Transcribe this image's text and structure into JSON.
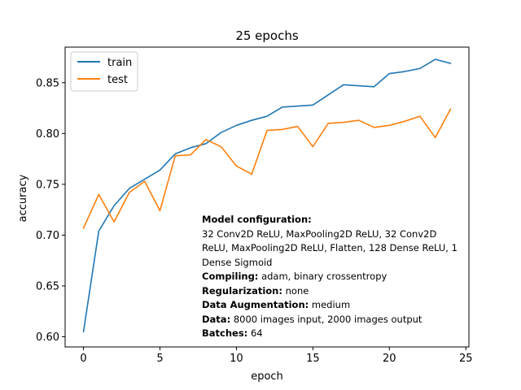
{
  "chart_data": {
    "type": "line",
    "title": "25 epochs",
    "xlabel": "epoch",
    "ylabel": "accuracy",
    "xlim": [
      -1.2,
      25.2
    ],
    "ylim": [
      0.59,
      0.885
    ],
    "xticks": [
      0,
      5,
      10,
      15,
      20,
      25
    ],
    "yticks": [
      0.6,
      0.65,
      0.7,
      0.75,
      0.8,
      0.85
    ],
    "ytick_labels": [
      "0.60",
      "0.65",
      "0.70",
      "0.75",
      "0.80",
      "0.85"
    ],
    "grid": false,
    "legend_position": "top-left",
    "x": [
      0,
      1,
      2,
      3,
      4,
      5,
      6,
      7,
      8,
      9,
      10,
      11,
      12,
      13,
      14,
      15,
      16,
      17,
      18,
      19,
      20,
      21,
      22,
      23,
      24
    ],
    "series": [
      {
        "name": "train",
        "color": "#1f77b4",
        "values": [
          0.605,
          0.704,
          0.729,
          0.746,
          0.755,
          0.764,
          0.78,
          0.786,
          0.79,
          0.801,
          0.808,
          0.813,
          0.817,
          0.826,
          0.827,
          0.828,
          0.838,
          0.848,
          0.847,
          0.846,
          0.859,
          0.861,
          0.864,
          0.873,
          0.869
        ]
      },
      {
        "name": "test",
        "color": "#ff7f0e",
        "values": [
          0.707,
          0.74,
          0.713,
          0.742,
          0.753,
          0.724,
          0.778,
          0.779,
          0.794,
          0.787,
          0.768,
          0.76,
          0.803,
          0.804,
          0.807,
          0.787,
          0.81,
          0.811,
          0.813,
          0.806,
          0.808,
          0.812,
          0.817,
          0.796,
          0.824
        ]
      }
    ],
    "annotation": {
      "model_label": "Model configuration:",
      "model_value_line1": "32 Conv2D ReLU, MaxPooling2D ReLU, 32 Conv2D",
      "model_value_line2": "ReLU, MaxPooling2D ReLU, Flatten, 128 Dense ReLU, 1",
      "model_value_line3": "Dense Sigmoid",
      "compiling_label": "Compiling:",
      "compiling_value": "adam, binary crossentropy",
      "regularization_label": "Regularization:",
      "regularization_value": "none",
      "augmentation_label": "Data Augmentation:",
      "augmentation_value": "medium",
      "data_label": "Data:",
      "data_value": "8000 images input, 2000 images output",
      "batches_label": "Batches:",
      "batches_value": "64"
    }
  }
}
